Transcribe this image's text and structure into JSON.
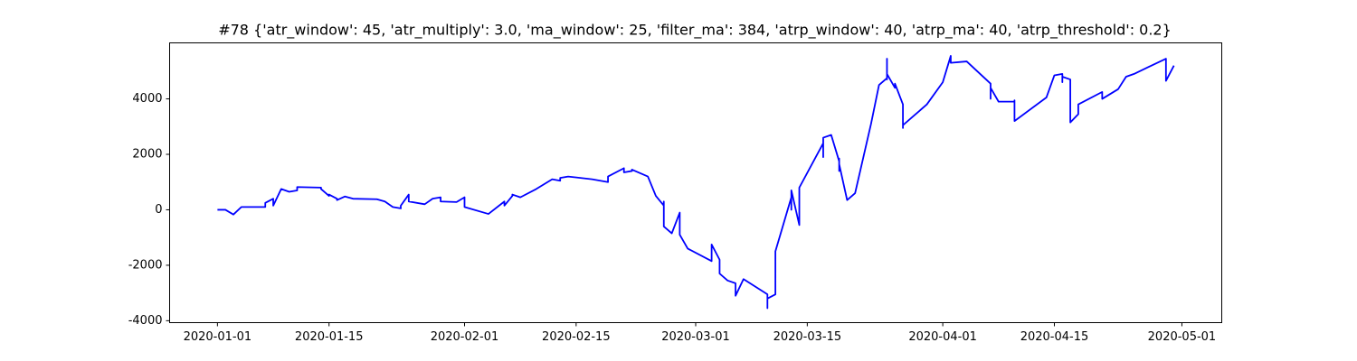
{
  "chart_data": {
    "type": "line",
    "title": "#78 {'atr_window': 45, 'atr_multiply': 3.0, 'ma_window': 25, 'filter_ma': 384, 'atrp_window': 40, 'atrp_ma': 40, 'atrp_threshold': 0.2}",
    "color": "#0000ff",
    "xlim": [
      "2019-12-26",
      "2020-05-06"
    ],
    "xticks": [
      "2020-01-01",
      "2020-01-15",
      "2020-02-01",
      "2020-02-15",
      "2020-03-01",
      "2020-03-15",
      "2020-04-01",
      "2020-04-15",
      "2020-05-01"
    ],
    "ylim": [
      -4070,
      6020
    ],
    "yticks": [
      -4000,
      -2000,
      0,
      2000,
      4000
    ],
    "x": [
      "2020-01-01",
      "2020-01-02",
      "2020-01-03",
      "2020-01-04",
      "2020-01-07",
      "2020-01-07",
      "2020-01-08",
      "2020-01-08",
      "2020-01-09",
      "2020-01-10",
      "2020-01-11",
      "2020-01-11",
      "2020-01-14",
      "2020-01-14",
      "2020-01-15",
      "2020-01-15",
      "2020-01-16",
      "2020-01-16",
      "2020-01-17",
      "2020-01-18",
      "2020-01-21",
      "2020-01-22",
      "2020-01-23",
      "2020-01-24",
      "2020-01-24",
      "2020-01-25",
      "2020-01-25",
      "2020-01-27",
      "2020-01-28",
      "2020-01-29",
      "2020-01-29",
      "2020-01-31",
      "2020-02-01",
      "2020-02-01",
      "2020-02-04",
      "2020-02-06",
      "2020-02-06",
      "2020-02-07",
      "2020-02-07",
      "2020-02-08",
      "2020-02-10",
      "2020-02-12",
      "2020-02-13",
      "2020-02-13",
      "2020-02-14",
      "2020-02-17",
      "2020-02-19",
      "2020-02-19",
      "2020-02-21",
      "2020-02-21",
      "2020-02-22",
      "2020-02-22",
      "2020-02-24",
      "2020-02-25",
      "2020-02-26",
      "2020-02-26",
      "2020-02-26",
      "2020-02-27",
      "2020-02-28",
      "2020-02-28",
      "2020-02-29",
      "2020-03-03",
      "2020-03-03",
      "2020-03-04",
      "2020-03-04",
      "2020-03-05",
      "2020-03-06",
      "2020-03-06",
      "2020-03-07",
      "2020-03-10",
      "2020-03-10",
      "2020-03-10",
      "2020-03-10",
      "2020-03-11",
      "2020-03-11",
      "2020-03-11",
      "2020-03-13",
      "2020-03-13",
      "2020-03-13",
      "2020-03-14",
      "2020-03-14",
      "2020-03-17",
      "2020-03-17",
      "2020-03-17",
      "2020-03-18",
      "2020-03-19",
      "2020-03-19",
      "2020-03-19",
      "2020-03-19",
      "2020-03-19",
      "2020-03-20",
      "2020-03-21",
      "2020-03-23",
      "2020-03-24",
      "2020-03-25",
      "2020-03-25",
      "2020-03-25",
      "2020-03-25",
      "2020-03-26",
      "2020-03-26",
      "2020-03-27",
      "2020-03-27",
      "2020-03-27",
      "2020-03-27",
      "2020-03-30",
      "2020-04-01",
      "2020-04-02",
      "2020-04-02",
      "2020-04-04",
      "2020-04-07",
      "2020-04-07",
      "2020-04-07",
      "2020-04-08",
      "2020-04-10",
      "2020-04-10",
      "2020-04-10",
      "2020-04-14",
      "2020-04-15",
      "2020-04-16",
      "2020-04-16",
      "2020-04-16",
      "2020-04-17",
      "2020-04-17",
      "2020-04-17",
      "2020-04-18",
      "2020-04-18",
      "2020-04-21",
      "2020-04-21",
      "2020-04-23",
      "2020-04-24",
      "2020-04-25",
      "2020-04-29",
      "2020-04-29",
      "2020-04-30"
    ],
    "values": [
      0,
      0,
      -170,
      100,
      100,
      250,
      400,
      150,
      750,
      650,
      700,
      820,
      800,
      750,
      500,
      550,
      400,
      350,
      480,
      400,
      380,
      300,
      100,
      50,
      150,
      550,
      300,
      200,
      400,
      450,
      300,
      280,
      450,
      100,
      -150,
      300,
      150,
      500,
      550,
      450,
      750,
      1100,
      1050,
      1150,
      1200,
      1100,
      1000,
      1200,
      1500,
      1350,
      1400,
      1450,
      1200,
      500,
      150,
      300,
      -600,
      -850,
      -100,
      -900,
      -1400,
      -1850,
      -1250,
      -1800,
      -2300,
      -2550,
      -2650,
      -3100,
      -2500,
      -3050,
      -3200,
      -3550,
      -3200,
      -3050,
      -1700,
      -1500,
      450,
      0,
      700,
      -550,
      800,
      2400,
      1900,
      2600,
      2700,
      1750,
      1650,
      1850,
      1400,
      1650,
      350,
      600,
      3100,
      4500,
      4750,
      5450,
      4700,
      4900,
      4400,
      4550,
      3800,
      3400,
      2950,
      3050,
      3800,
      4600,
      5550,
      5300,
      5350,
      4550,
      4000,
      4400,
      3900,
      3900,
      3950,
      3200,
      4050,
      4850,
      4900,
      4600,
      4800,
      4700,
      4050,
      3150,
      3450,
      3800,
      4250,
      4000,
      4350,
      4800,
      4900,
      5450,
      4650,
      5200
    ]
  }
}
